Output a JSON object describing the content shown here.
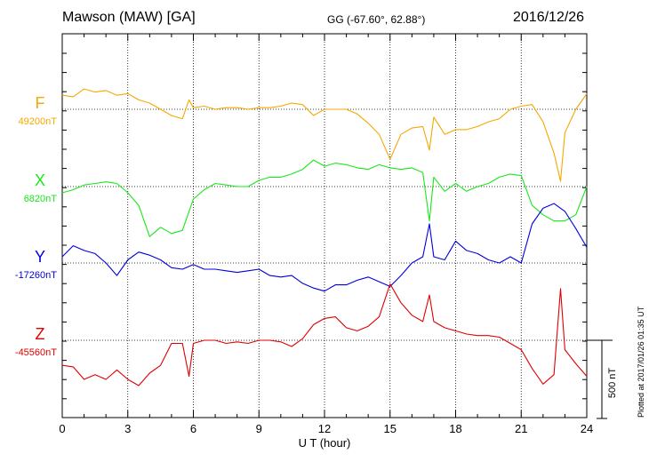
{
  "header": {
    "station": "Mawson (MAW)  [GA]",
    "coords": "GG (-67.60°,  62.88°)",
    "date": "2016/12/26"
  },
  "footer": {
    "plotted": "Plotted at 2017/01/26 01:35 UT"
  },
  "colors": {
    "F": "#f5a800",
    "X": "#18e818",
    "Y": "#0000dd",
    "Z": "#e00000",
    "grid": "#000000"
  },
  "chart_data": {
    "type": "line",
    "xlabel": "U T (hour)",
    "xlim": [
      0,
      24
    ],
    "xticks": [
      "0",
      "3",
      "6",
      "9",
      "12",
      "15",
      "18",
      "21",
      "24"
    ],
    "scale_bar": {
      "label": "500 nT",
      "value": 500
    },
    "series": [
      {
        "name": "F",
        "baseline": 49200,
        "baseline_label": "49200nT",
        "x": [
          0,
          0.5,
          1,
          1.5,
          2,
          2.5,
          3,
          3.5,
          4,
          4.5,
          5,
          5.5,
          5.8,
          6,
          6.5,
          7,
          7.5,
          8,
          8.5,
          9,
          9.5,
          10,
          10.5,
          11,
          11.5,
          12,
          12.5,
          13,
          13.5,
          14,
          14.5,
          15,
          15.5,
          16,
          16.5,
          16.8,
          17,
          17.5,
          18,
          18.5,
          19,
          19.5,
          20,
          20.5,
          21,
          21.5,
          22,
          22.5,
          22.8,
          23,
          23.5,
          24
        ],
        "values": [
          90,
          80,
          130,
          110,
          120,
          90,
          100,
          60,
          40,
          0,
          -40,
          -60,
          60,
          10,
          20,
          0,
          10,
          10,
          0,
          10,
          10,
          20,
          40,
          30,
          -40,
          0,
          0,
          0,
          -30,
          -90,
          -160,
          -320,
          -160,
          -120,
          -110,
          -260,
          -50,
          -160,
          -130,
          -130,
          -110,
          -80,
          -60,
          0,
          20,
          30,
          -80,
          -280,
          -460,
          -150,
          0,
          100
        ]
      },
      {
        "name": "X",
        "baseline": 6820,
        "baseline_label": "6820nT",
        "x": [
          0,
          0.5,
          1,
          1.5,
          2,
          2.5,
          3,
          3.5,
          4,
          4.5,
          5,
          5.5,
          6,
          6.5,
          7,
          7.5,
          8,
          8.5,
          9,
          9.5,
          10,
          10.5,
          11,
          11.5,
          12,
          12.5,
          13,
          13.5,
          14,
          14.5,
          15,
          15.5,
          16,
          16.5,
          16.8,
          17,
          17.5,
          18,
          18.5,
          19,
          19.5,
          20,
          20.5,
          21,
          21.5,
          22,
          22.5,
          23,
          23.5,
          24
        ],
        "values": [
          -40,
          -20,
          10,
          20,
          30,
          20,
          -40,
          -120,
          -320,
          -260,
          -300,
          -280,
          -80,
          -20,
          20,
          10,
          0,
          0,
          40,
          60,
          60,
          80,
          110,
          170,
          130,
          150,
          140,
          120,
          110,
          140,
          120,
          110,
          120,
          90,
          -220,
          60,
          -30,
          20,
          -30,
          0,
          20,
          60,
          80,
          70,
          -120,
          -180,
          -220,
          -220,
          -180,
          0
        ]
      },
      {
        "name": "Y",
        "baseline": -17260,
        "baseline_label": "-17260nT",
        "x": [
          0,
          0.5,
          1,
          1.5,
          2,
          2.5,
          3,
          3.5,
          4,
          4.5,
          5,
          5.5,
          6,
          6.5,
          7,
          7.5,
          8,
          8.5,
          9,
          9.5,
          10,
          10.5,
          11,
          11.5,
          12,
          12.5,
          13,
          13.5,
          14,
          14.5,
          15,
          15.5,
          16,
          16.5,
          16.8,
          17,
          17.5,
          18,
          18.5,
          19,
          19.5,
          20,
          20.5,
          21,
          21.5,
          22,
          22.5,
          23,
          23.5,
          24
        ],
        "values": [
          40,
          110,
          80,
          60,
          0,
          -80,
          20,
          70,
          50,
          20,
          -30,
          -40,
          -10,
          -40,
          -40,
          -50,
          -60,
          -50,
          -40,
          -80,
          -90,
          -80,
          -130,
          -160,
          -180,
          -140,
          -140,
          -110,
          -90,
          -120,
          -150,
          -80,
          0,
          40,
          250,
          40,
          20,
          140,
          80,
          60,
          20,
          0,
          40,
          0,
          250,
          350,
          380,
          330,
          220,
          100
        ]
      },
      {
        "name": "Z",
        "baseline": -45560,
        "baseline_label": "-45560nT",
        "x": [
          0,
          0.5,
          1,
          1.5,
          2,
          2.5,
          3,
          3.5,
          4,
          4.5,
          5,
          5.5,
          5.8,
          6,
          6.5,
          7,
          7.5,
          8,
          8.5,
          9,
          9.5,
          10,
          10.5,
          11,
          11.5,
          12,
          12.5,
          13,
          13.5,
          14,
          14.5,
          15,
          15.5,
          16,
          16.5,
          16.8,
          17,
          17.5,
          18,
          18.5,
          19,
          19.5,
          20,
          20.5,
          21,
          21.5,
          22,
          22.5,
          22.8,
          23,
          23.5,
          24
        ],
        "values": [
          -160,
          -170,
          -250,
          -220,
          -250,
          -190,
          -250,
          -290,
          -210,
          -160,
          -20,
          -20,
          -230,
          -20,
          0,
          0,
          -20,
          -10,
          -20,
          0,
          0,
          -10,
          -40,
          10,
          100,
          140,
          150,
          80,
          60,
          90,
          150,
          360,
          240,
          160,
          120,
          290,
          120,
          80,
          60,
          40,
          30,
          30,
          20,
          -20,
          -60,
          -180,
          -280,
          -220,
          330,
          -60,
          -150,
          -230
        ]
      }
    ]
  }
}
